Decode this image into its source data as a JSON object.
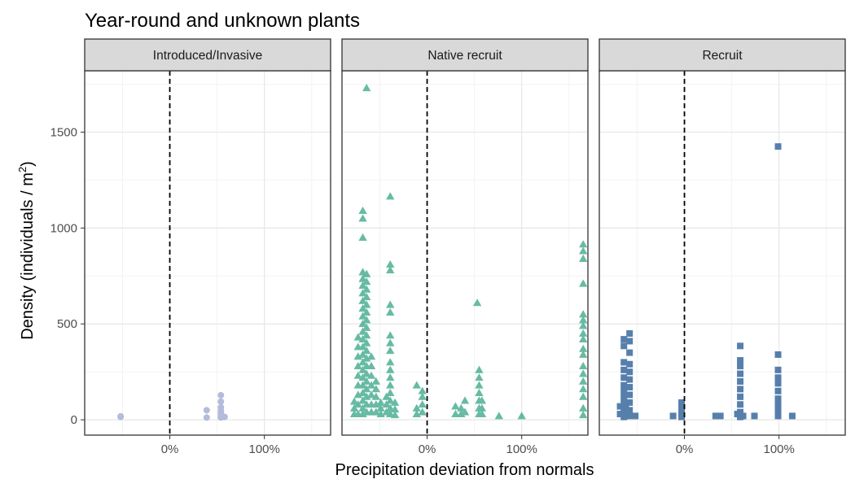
{
  "chart_data": {
    "type": "scatter",
    "title": "Year-round and unknown plants",
    "xlabel": "Precipitation deviation from normals",
    "ylabel": "Density (individuals / m",
    "ylabel_superscript": "2",
    "ylabel_suffix": ")",
    "xlim": [
      -0.9,
      1.7
    ],
    "ylim": [
      -80,
      1820
    ],
    "x_ticks": [
      0,
      1
    ],
    "x_tick_labels": [
      "0%",
      "100%"
    ],
    "y_ticks": [
      0,
      500,
      1000,
      1500
    ],
    "y_tick_labels": [
      "0",
      "500",
      "1000",
      "1500"
    ],
    "reference_line_x": 0,
    "grid": true,
    "legend": "none",
    "panels": [
      {
        "label": "Introduced/Invasive",
        "shape": "circle",
        "color": "#9aa6cf",
        "points": [
          [
            -0.52,
            15
          ],
          [
            -0.52,
            18
          ],
          [
            0.39,
            12
          ],
          [
            0.39,
            50
          ],
          [
            0.54,
            12
          ],
          [
            0.54,
            20
          ],
          [
            0.54,
            35
          ],
          [
            0.54,
            48
          ],
          [
            0.54,
            65
          ],
          [
            0.54,
            95
          ],
          [
            0.54,
            128
          ],
          [
            0.58,
            15
          ]
        ]
      },
      {
        "label": "Native recruit",
        "shape": "triangle",
        "color": "#35a585",
        "points": [
          [
            -0.64,
            1730
          ],
          [
            -0.68,
            1090
          ],
          [
            -0.68,
            1050
          ],
          [
            -0.68,
            950
          ],
          [
            -0.68,
            770
          ],
          [
            -0.68,
            735
          ],
          [
            -0.68,
            700
          ],
          [
            -0.68,
            660
          ],
          [
            -0.68,
            620
          ],
          [
            -0.68,
            580
          ],
          [
            -0.68,
            540
          ],
          [
            -0.68,
            500
          ],
          [
            -0.68,
            460
          ],
          [
            -0.68,
            420
          ],
          [
            -0.68,
            380
          ],
          [
            -0.68,
            340
          ],
          [
            -0.68,
            300
          ],
          [
            -0.68,
            260
          ],
          [
            -0.68,
            220
          ],
          [
            -0.68,
            180
          ],
          [
            -0.68,
            140
          ],
          [
            -0.68,
            100
          ],
          [
            -0.68,
            60
          ],
          [
            -0.68,
            30
          ],
          [
            -0.73,
            430
          ],
          [
            -0.73,
            380
          ],
          [
            -0.73,
            330
          ],
          [
            -0.73,
            280
          ],
          [
            -0.73,
            230
          ],
          [
            -0.73,
            180
          ],
          [
            -0.73,
            130
          ],
          [
            -0.73,
            80
          ],
          [
            -0.73,
            30
          ],
          [
            -0.77,
            95
          ],
          [
            -0.77,
            60
          ],
          [
            -0.77,
            30
          ],
          [
            -0.64,
            760
          ],
          [
            -0.64,
            720
          ],
          [
            -0.64,
            680
          ],
          [
            -0.64,
            640
          ],
          [
            -0.64,
            600
          ],
          [
            -0.64,
            560
          ],
          [
            -0.64,
            520
          ],
          [
            -0.64,
            480
          ],
          [
            -0.64,
            440
          ],
          [
            -0.64,
            400
          ],
          [
            -0.64,
            360
          ],
          [
            -0.64,
            320
          ],
          [
            -0.64,
            280
          ],
          [
            -0.64,
            240
          ],
          [
            -0.64,
            200
          ],
          [
            -0.64,
            160
          ],
          [
            -0.64,
            120
          ],
          [
            -0.64,
            80
          ],
          [
            -0.64,
            40
          ],
          [
            -0.59,
            330
          ],
          [
            -0.59,
            280
          ],
          [
            -0.59,
            230
          ],
          [
            -0.59,
            180
          ],
          [
            -0.59,
            130
          ],
          [
            -0.59,
            80
          ],
          [
            -0.59,
            40
          ],
          [
            -0.54,
            200
          ],
          [
            -0.54,
            160
          ],
          [
            -0.54,
            120
          ],
          [
            -0.54,
            80
          ],
          [
            -0.54,
            40
          ],
          [
            -0.49,
            90
          ],
          [
            -0.49,
            60
          ],
          [
            -0.49,
            30
          ],
          [
            -0.39,
            1165
          ],
          [
            -0.39,
            810
          ],
          [
            -0.39,
            780
          ],
          [
            -0.39,
            600
          ],
          [
            -0.39,
            560
          ],
          [
            -0.39,
            440
          ],
          [
            -0.39,
            400
          ],
          [
            -0.39,
            360
          ],
          [
            -0.39,
            300
          ],
          [
            -0.39,
            260
          ],
          [
            -0.39,
            220
          ],
          [
            -0.39,
            180
          ],
          [
            -0.39,
            140
          ],
          [
            -0.39,
            100
          ],
          [
            -0.39,
            60
          ],
          [
            -0.39,
            30
          ],
          [
            -0.43,
            120
          ],
          [
            -0.43,
            80
          ],
          [
            -0.43,
            40
          ],
          [
            -0.34,
            90
          ],
          [
            -0.34,
            55
          ],
          [
            -0.34,
            25
          ],
          [
            -0.11,
            180
          ],
          [
            -0.11,
            60
          ],
          [
            -0.11,
            30
          ],
          [
            -0.05,
            150
          ],
          [
            -0.05,
            120
          ],
          [
            -0.05,
            80
          ],
          [
            -0.05,
            40
          ],
          [
            0.3,
            70
          ],
          [
            0.3,
            30
          ],
          [
            0.36,
            60
          ],
          [
            0.36,
            30
          ],
          [
            0.4,
            100
          ],
          [
            0.4,
            40
          ],
          [
            0.53,
            610
          ],
          [
            0.55,
            260
          ],
          [
            0.55,
            220
          ],
          [
            0.55,
            180
          ],
          [
            0.55,
            140
          ],
          [
            0.55,
            100
          ],
          [
            0.55,
            60
          ],
          [
            0.55,
            30
          ],
          [
            0.58,
            100
          ],
          [
            0.58,
            60
          ],
          [
            0.58,
            30
          ],
          [
            0.76,
            20
          ],
          [
            1.0,
            20
          ],
          [
            1.65,
            915
          ],
          [
            1.65,
            880
          ],
          [
            1.65,
            840
          ],
          [
            1.65,
            710
          ],
          [
            1.65,
            550
          ],
          [
            1.65,
            520
          ],
          [
            1.65,
            490
          ],
          [
            1.65,
            450
          ],
          [
            1.65,
            420
          ],
          [
            1.65,
            370
          ],
          [
            1.65,
            340
          ],
          [
            1.65,
            280
          ],
          [
            1.65,
            240
          ],
          [
            1.65,
            200
          ],
          [
            1.65,
            160
          ],
          [
            1.65,
            120
          ],
          [
            1.65,
            60
          ],
          [
            1.65,
            25
          ]
        ]
      },
      {
        "label": "Recruit",
        "shape": "square",
        "color": "#1f5591",
        "points": [
          [
            -0.64,
            420
          ],
          [
            -0.64,
            385
          ],
          [
            -0.64,
            300
          ],
          [
            -0.64,
            260
          ],
          [
            -0.64,
            220
          ],
          [
            -0.64,
            180
          ],
          [
            -0.64,
            150
          ],
          [
            -0.64,
            120
          ],
          [
            -0.64,
            90
          ],
          [
            -0.64,
            60
          ],
          [
            -0.64,
            30
          ],
          [
            -0.64,
            15
          ],
          [
            -0.58,
            450
          ],
          [
            -0.58,
            410
          ],
          [
            -0.58,
            350
          ],
          [
            -0.58,
            290
          ],
          [
            -0.58,
            250
          ],
          [
            -0.58,
            210
          ],
          [
            -0.58,
            170
          ],
          [
            -0.58,
            130
          ],
          [
            -0.58,
            90
          ],
          [
            -0.58,
            50
          ],
          [
            -0.58,
            20
          ],
          [
            -0.68,
            70
          ],
          [
            -0.68,
            30
          ],
          [
            -0.62,
            60
          ],
          [
            -0.62,
            20
          ],
          [
            -0.52,
            20
          ],
          [
            -0.12,
            20
          ],
          [
            -0.03,
            90
          ],
          [
            -0.03,
            60
          ],
          [
            -0.03,
            30
          ],
          [
            -0.03,
            15
          ],
          [
            0.33,
            20
          ],
          [
            0.38,
            20
          ],
          [
            0.59,
            385
          ],
          [
            0.59,
            310
          ],
          [
            0.59,
            280
          ],
          [
            0.59,
            240
          ],
          [
            0.59,
            200
          ],
          [
            0.59,
            160
          ],
          [
            0.59,
            120
          ],
          [
            0.59,
            80
          ],
          [
            0.59,
            40
          ],
          [
            0.59,
            15
          ],
          [
            0.56,
            30
          ],
          [
            0.62,
            20
          ],
          [
            0.74,
            20
          ],
          [
            0.99,
            1425
          ],
          [
            0.99,
            340
          ],
          [
            0.99,
            260
          ],
          [
            0.99,
            220
          ],
          [
            0.99,
            190
          ],
          [
            0.99,
            150
          ],
          [
            0.99,
            110
          ],
          [
            0.99,
            80
          ],
          [
            0.99,
            50
          ],
          [
            0.99,
            20
          ],
          [
            1.14,
            20
          ]
        ]
      }
    ]
  }
}
